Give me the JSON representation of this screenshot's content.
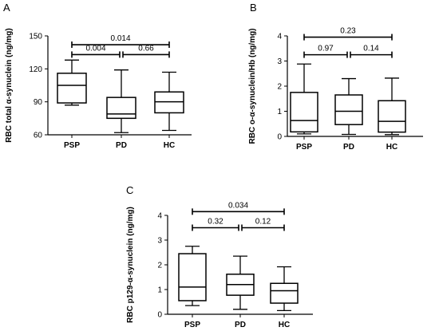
{
  "figure": {
    "panels": [
      "A",
      "B",
      "C"
    ]
  },
  "chart_data": [
    {
      "panel": "A",
      "type": "boxplot",
      "ylabel": "RBC total α-synuclein (ng/mg)",
      "ylim": [
        60,
        150
      ],
      "yticks": [
        60,
        90,
        120,
        150
      ],
      "categories": [
        "PSP",
        "PD",
        "HC"
      ],
      "boxes": [
        {
          "name": "PSP",
          "min": 87,
          "q1": 89,
          "median": 105,
          "q3": 116,
          "max": 128
        },
        {
          "name": "PD",
          "min": 62,
          "q1": 75,
          "median": 79,
          "q3": 94,
          "max": 119
        },
        {
          "name": "HC",
          "min": 64,
          "q1": 80,
          "median": 90,
          "q3": 99,
          "max": 117
        }
      ],
      "comparisons": [
        {
          "from": "PSP",
          "to": "PD",
          "label": "0.004",
          "level": 1
        },
        {
          "from": "PD",
          "to": "HC",
          "label": "0.66",
          "level": 1
        },
        {
          "from": "PSP",
          "to": "HC",
          "label": "0.014",
          "level": 2
        }
      ],
      "bracket_levels": [
        133,
        142
      ]
    },
    {
      "panel": "B",
      "type": "boxplot",
      "ylabel": "RBC o-α-synuclein/Hb (ng/mg)",
      "ylim": [
        0,
        4
      ],
      "yticks": [
        0,
        1,
        2,
        3,
        4
      ],
      "categories": [
        "PSP",
        "PD",
        "HC"
      ],
      "boxes": [
        {
          "name": "PSP",
          "min": 0.1,
          "q1": 0.18,
          "median": 0.63,
          "q3": 1.75,
          "max": 2.88
        },
        {
          "name": "PD",
          "min": 0.08,
          "q1": 0.47,
          "median": 1.0,
          "q3": 1.65,
          "max": 2.3
        },
        {
          "name": "HC",
          "min": 0.07,
          "q1": 0.17,
          "median": 0.6,
          "q3": 1.42,
          "max": 2.32
        }
      ],
      "comparisons": [
        {
          "from": "PSP",
          "to": "PD",
          "label": "0.97",
          "level": 1
        },
        {
          "from": "PD",
          "to": "HC",
          "label": "0.14",
          "level": 1
        },
        {
          "from": "PSP",
          "to": "HC",
          "label": "0.23",
          "level": 2
        }
      ],
      "bracket_levels": [
        3.25,
        3.95
      ]
    },
    {
      "panel": "C",
      "type": "boxplot",
      "ylabel": "RBC p129-α-synuclein (ng/mg)",
      "ylim": [
        0,
        4
      ],
      "yticks": [
        0,
        1,
        2,
        3,
        4
      ],
      "categories": [
        "PSP",
        "PD",
        "HC"
      ],
      "boxes": [
        {
          "name": "PSP",
          "min": 0.35,
          "q1": 0.55,
          "median": 1.1,
          "q3": 2.45,
          "max": 2.75
        },
        {
          "name": "PD",
          "min": 0.2,
          "q1": 0.77,
          "median": 1.2,
          "q3": 1.62,
          "max": 2.35
        },
        {
          "name": "HC",
          "min": 0.15,
          "q1": 0.45,
          "median": 0.95,
          "q3": 1.25,
          "max": 1.92
        }
      ],
      "comparisons": [
        {
          "from": "PSP",
          "to": "PD",
          "label": "0.32",
          "level": 1
        },
        {
          "from": "PD",
          "to": "HC",
          "label": "0.12",
          "level": 1
        },
        {
          "from": "PSP",
          "to": "HC",
          "label": "0.034",
          "level": 2
        }
      ],
      "bracket_levels": [
        3.5,
        4.15
      ]
    }
  ]
}
